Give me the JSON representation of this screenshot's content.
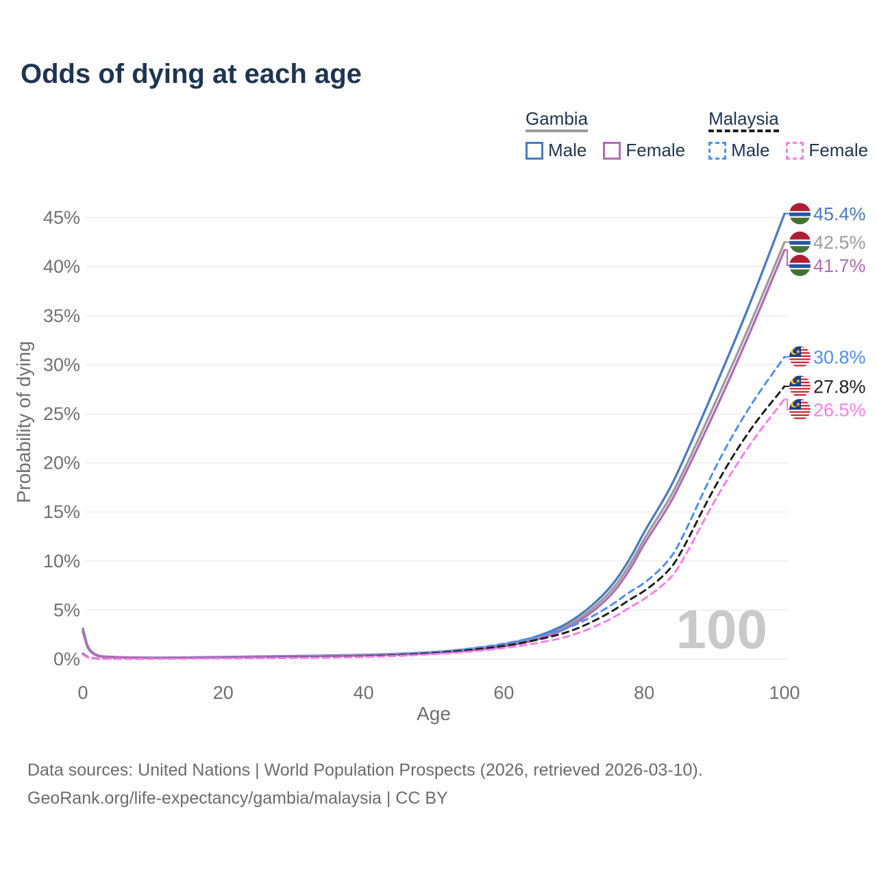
{
  "title": "Odds of dying at each age",
  "legend": {
    "groups": [
      {
        "label": "Gambia",
        "line_style": "solid",
        "line_color": "#9b9b9b",
        "items": [
          {
            "label": "Male",
            "line_style": "solid",
            "color": "#4a7ac1"
          },
          {
            "label": "Female",
            "line_style": "solid",
            "color": "#b16bb5"
          }
        ]
      },
      {
        "label": "Malaysia",
        "line_style": "dashed",
        "line_color": "#1f1f1f",
        "items": [
          {
            "label": "Male",
            "line_style": "dashed",
            "color": "#4f8ef6"
          },
          {
            "label": "Female",
            "line_style": "dashed",
            "color": "#fb7eea"
          }
        ]
      }
    ]
  },
  "chart_data": {
    "type": "line",
    "title": "Odds of dying at each age",
    "xlabel": "Age",
    "ylabel": "Probability of dying",
    "xlim": [
      0,
      100
    ],
    "ylim_percent": [
      0,
      46
    ],
    "x_ticks": [
      0,
      20,
      40,
      60,
      80,
      100
    ],
    "y_ticks_percent": [
      0,
      5,
      10,
      15,
      20,
      25,
      30,
      35,
      40,
      45
    ],
    "grid": "horizontal",
    "age_watermark": "100",
    "x_ages": [
      0,
      1,
      5,
      10,
      15,
      20,
      25,
      30,
      35,
      40,
      45,
      50,
      55,
      60,
      65,
      70,
      75,
      78,
      80,
      83,
      85,
      90,
      95,
      100
    ],
    "series": [
      {
        "name": "Gambia Male",
        "country": "Gambia",
        "sex": "Male",
        "line_style": "solid",
        "color": "#4a7ac1",
        "flag": "gambia",
        "end_label": "45.4%",
        "values_percent": [
          3.1,
          0.35,
          0.18,
          0.14,
          0.17,
          0.22,
          0.27,
          0.31,
          0.36,
          0.43,
          0.53,
          0.7,
          1.0,
          1.45,
          2.3,
          3.9,
          7.0,
          10.2,
          13.0,
          16.5,
          19.3,
          27.5,
          36.0,
          45.4
        ]
      },
      {
        "name": "Gambia Both sexes",
        "country": "Gambia",
        "sex": "Both sexes",
        "line_style": "solid",
        "color": "#9b9b9b",
        "flag": "gambia",
        "end_label": "42.5%",
        "values_percent": [
          2.95,
          0.33,
          0.17,
          0.13,
          0.16,
          0.2,
          0.24,
          0.28,
          0.33,
          0.4,
          0.49,
          0.65,
          0.92,
          1.35,
          2.12,
          3.62,
          6.55,
          9.6,
          12.3,
          15.6,
          18.2,
          25.9,
          33.9,
          42.5
        ]
      },
      {
        "name": "Gambia Female",
        "country": "Gambia",
        "sex": "Female",
        "line_style": "solid",
        "color": "#b16bb5",
        "flag": "gambia",
        "end_label": "41.7%",
        "values_percent": [
          2.8,
          0.3,
          0.16,
          0.12,
          0.15,
          0.18,
          0.22,
          0.26,
          0.3,
          0.37,
          0.45,
          0.6,
          0.85,
          1.25,
          1.98,
          3.4,
          6.15,
          9.1,
          11.8,
          15.0,
          17.6,
          25.1,
          33.1,
          41.7
        ]
      },
      {
        "name": "Malaysia Male",
        "country": "Malaysia",
        "sex": "Male",
        "line_style": "dashed",
        "color": "#4f8ef6",
        "flag": "malaysia",
        "end_label": "30.8%",
        "values_percent": [
          0.55,
          0.05,
          0.03,
          0.04,
          0.09,
          0.12,
          0.14,
          0.17,
          0.22,
          0.3,
          0.45,
          0.7,
          1.05,
          1.55,
          2.3,
          3.35,
          5.3,
          6.9,
          7.7,
          9.6,
          11.6,
          19.5,
          25.8,
          30.8
        ]
      },
      {
        "name": "Malaysia Both sexes",
        "country": "Malaysia",
        "sex": "Both sexes",
        "line_style": "dashed",
        "color": "#1f1f1f",
        "flag": "malaysia",
        "end_label": "27.8%",
        "values_percent": [
          0.5,
          0.045,
          0.025,
          0.03,
          0.07,
          0.09,
          0.11,
          0.14,
          0.19,
          0.26,
          0.39,
          0.6,
          0.9,
          1.33,
          1.98,
          2.9,
          4.65,
          6.1,
          6.9,
          8.6,
          10.4,
          17.6,
          23.4,
          27.8
        ]
      },
      {
        "name": "Malaysia Female",
        "country": "Malaysia",
        "sex": "Female",
        "line_style": "dashed",
        "color": "#fb7eea",
        "flag": "malaysia",
        "end_label": "26.5%",
        "values_percent": [
          0.45,
          0.04,
          0.02,
          0.025,
          0.05,
          0.07,
          0.09,
          0.11,
          0.15,
          0.21,
          0.32,
          0.5,
          0.74,
          1.1,
          1.64,
          2.42,
          3.95,
          5.3,
          6.1,
          7.7,
          9.3,
          16.2,
          21.9,
          26.5
        ]
      }
    ]
  },
  "footer": {
    "line1": "Data sources: United Nations | World Population Prospects (2026, retrieved 2026-03-10).",
    "line2": "GeoRank.org/life-expectancy/gambia/malaysia | CC BY"
  }
}
